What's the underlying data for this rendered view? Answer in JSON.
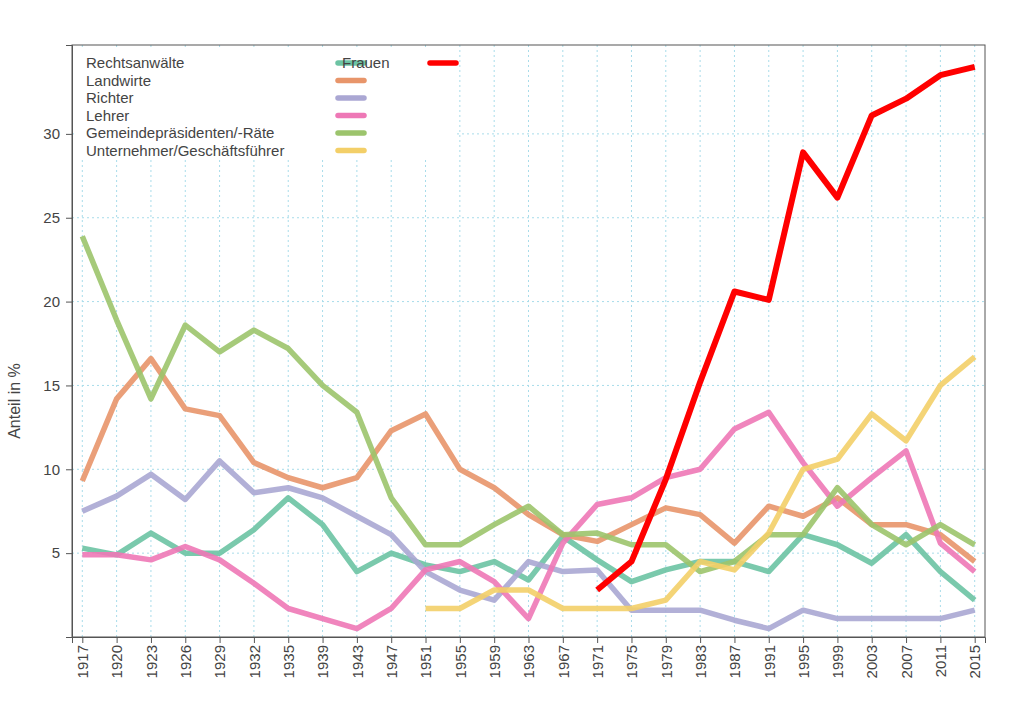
{
  "chart_data": {
    "type": "line",
    "y_label": "Anteil in %",
    "categories": [
      "1917",
      "1920",
      "1923",
      "1926",
      "1929",
      "1932",
      "1935",
      "1939",
      "1943",
      "1947",
      "1951",
      "1955",
      "1959",
      "1963",
      "1967",
      "1971",
      "1975",
      "1979",
      "1983",
      "1987",
      "1991",
      "1995",
      "1999",
      "2003",
      "2007",
      "2011",
      "2015"
    ],
    "ylim": [
      0,
      35.3
    ],
    "yticks": [
      5,
      10,
      15,
      20,
      25,
      30
    ],
    "grid": true,
    "legend": "top-left",
    "series": [
      {
        "name": "Rechtsanwälte",
        "color": "#6cc3a3",
        "values": [
          5.3,
          4.9,
          6.2,
          5.0,
          5.0,
          6.4,
          8.3,
          6.7,
          3.9,
          5.0,
          4.3,
          3.9,
          4.5,
          3.4,
          6.0,
          4.6,
          3.3,
          4.0,
          4.5,
          4.5,
          3.9,
          6.1,
          5.5,
          4.4,
          6.1,
          3.9,
          2.2
        ]
      },
      {
        "name": "Landwirte",
        "color": "#e8956a",
        "values": [
          9.3,
          14.2,
          16.6,
          13.6,
          13.2,
          10.4,
          9.5,
          8.9,
          9.5,
          12.3,
          13.3,
          10.0,
          8.9,
          7.3,
          6.1,
          5.7,
          6.7,
          7.7,
          7.3,
          5.6,
          7.8,
          7.2,
          8.3,
          6.7,
          6.7,
          6.1,
          4.5
        ]
      },
      {
        "name": "Richter",
        "color": "#aaa7d3",
        "values": [
          7.5,
          8.4,
          9.7,
          8.2,
          10.5,
          8.6,
          8.9,
          8.3,
          7.2,
          6.1,
          3.9,
          2.8,
          2.2,
          4.5,
          3.9,
          4.0,
          1.6,
          1.6,
          1.6,
          1.0,
          0.5,
          1.6,
          1.1,
          1.1,
          1.1,
          1.1,
          1.6
        ]
      },
      {
        "name": "Lehrer",
        "color": "#ee78b6",
        "values": [
          4.9,
          4.9,
          4.6,
          5.4,
          4.6,
          3.2,
          1.7,
          1.1,
          0.5,
          1.7,
          4.0,
          4.5,
          3.3,
          1.1,
          5.6,
          7.9,
          8.3,
          9.5,
          10.0,
          12.4,
          13.4,
          10.4,
          7.8,
          9.5,
          11.1,
          5.6,
          3.9
        ]
      },
      {
        "name": "Gemeindepräsidenten/-Räte",
        "color": "#9cc46c",
        "values": [
          23.9,
          18.9,
          14.2,
          18.6,
          17.0,
          18.3,
          17.2,
          15.0,
          13.4,
          8.3,
          5.5,
          5.5,
          6.7,
          7.8,
          6.1,
          6.2,
          5.5,
          5.5,
          3.9,
          4.5,
          6.1,
          6.1,
          8.9,
          6.7,
          5.5,
          6.7,
          5.5
        ]
      },
      {
        "name": "Unternehmer/Geschäftsführer",
        "color": "#f3cf68",
        "values": [
          null,
          null,
          null,
          null,
          null,
          null,
          null,
          null,
          null,
          null,
          1.7,
          1.7,
          2.8,
          2.8,
          1.7,
          1.7,
          1.7,
          2.2,
          4.5,
          4.0,
          6.2,
          10.0,
          10.6,
          13.3,
          11.7,
          15.0,
          16.7
        ]
      },
      {
        "name": "Frauen",
        "color": "#ff0000",
        "values": [
          null,
          null,
          null,
          null,
          null,
          null,
          null,
          null,
          null,
          null,
          null,
          null,
          null,
          null,
          null,
          2.8,
          4.5,
          9.4,
          15.2,
          20.6,
          20.1,
          28.9,
          26.2,
          31.1,
          32.1,
          33.5,
          34.0
        ]
      }
    ]
  }
}
